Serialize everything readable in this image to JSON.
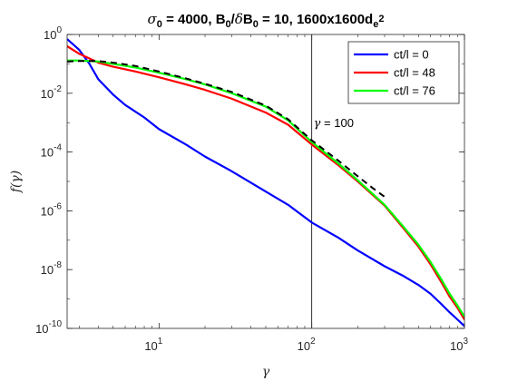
{
  "chart_data": {
    "type": "line",
    "title": "σ_0 = 4000, B_0/δB_0 = 10, 1600x1600d_e^2",
    "xlabel": "γ",
    "ylabel": "f(γ)",
    "xscale": "log",
    "yscale": "log",
    "xlim": [
      2.5,
      1000
    ],
    "ylim": [
      1e-10,
      1
    ],
    "x_ticks": [
      {
        "value": 10,
        "mant": "10",
        "exp": "1"
      },
      {
        "value": 100,
        "mant": "10",
        "exp": "2"
      },
      {
        "value": 1000,
        "mant": "10",
        "exp": "3"
      }
    ],
    "y_ticks": [
      {
        "value": 1e-10,
        "mant": "10",
        "exp": "-10"
      },
      {
        "value": 1e-08,
        "mant": "10",
        "exp": "-8"
      },
      {
        "value": 1e-06,
        "mant": "10",
        "exp": "-6"
      },
      {
        "value": 0.0001,
        "mant": "10",
        "exp": "-4"
      },
      {
        "value": 0.01,
        "mant": "10",
        "exp": "-2"
      },
      {
        "value": 1,
        "mant": "10",
        "exp": "0"
      }
    ],
    "grid": false,
    "legend_position": "top-right",
    "series": [
      {
        "name": "ct/l = 0",
        "color": "#0000ff",
        "x": [
          2.5,
          3,
          3.5,
          4,
          5,
          6,
          8,
          10,
          15,
          20,
          30,
          50,
          70,
          100,
          150,
          200,
          300,
          400,
          500,
          600,
          700,
          800,
          900,
          1000
        ],
        "y": [
          0.7,
          0.3,
          0.1,
          0.03,
          0.009,
          0.004,
          0.0015,
          0.0006,
          0.00018,
          7e-05,
          2.2e-05,
          4.5e-06,
          1.6e-06,
          4e-07,
          1.2e-07,
          4.5e-08,
          1.3e-08,
          6e-09,
          3e-09,
          1.5e-09,
          7e-10,
          3.5e-10,
          2e-10,
          1.2e-10
        ]
      },
      {
        "name": "ct/l = 48",
        "color": "#ff0000",
        "x": [
          2.5,
          3,
          4,
          5,
          7,
          10,
          15,
          20,
          30,
          50,
          70,
          100,
          150,
          200,
          300,
          400,
          500,
          600,
          700,
          800,
          900,
          1000
        ],
        "y": [
          0.4,
          0.22,
          0.11,
          0.08,
          0.055,
          0.035,
          0.02,
          0.013,
          0.0065,
          0.0022,
          0.00085,
          0.00018,
          3.5e-05,
          1e-05,
          1.5e-06,
          2.5e-07,
          6e-08,
          1.5e-08,
          4e-09,
          1.2e-09,
          5e-10,
          2e-10
        ]
      },
      {
        "name": "ct/l = 76",
        "color": "#00ff00",
        "x": [
          2.5,
          3,
          4,
          5,
          7,
          10,
          15,
          20,
          30,
          50,
          70,
          100,
          150,
          200,
          300,
          400,
          500,
          600,
          700,
          800,
          900,
          1000
        ],
        "y": [
          0.13,
          0.13,
          0.12,
          0.1,
          0.075,
          0.05,
          0.03,
          0.02,
          0.01,
          0.0035,
          0.0012,
          0.00022,
          4e-05,
          1.1e-05,
          1.6e-06,
          2.8e-07,
          7e-08,
          1.8e-08,
          5e-09,
          1.5e-09,
          6e-10,
          2.5e-10
        ]
      },
      {
        "name": "",
        "color": "#000000",
        "dashed": true,
        "x": [
          2.5,
          3,
          4,
          5,
          7,
          10,
          15,
          20,
          30,
          50,
          70,
          100,
          150,
          200,
          250,
          300
        ],
        "y": [
          0.12,
          0.125,
          0.125,
          0.11,
          0.085,
          0.055,
          0.032,
          0.021,
          0.011,
          0.0038,
          0.0013,
          0.00025,
          5e-05,
          1.5e-05,
          6e-06,
          3e-06
        ]
      }
    ],
    "annotations": [
      {
        "type": "vline",
        "x": 100,
        "color": "#000000"
      },
      {
        "type": "text",
        "x": 100,
        "y": 0.0007,
        "prefix": "γ",
        "text": " = 100"
      }
    ]
  }
}
